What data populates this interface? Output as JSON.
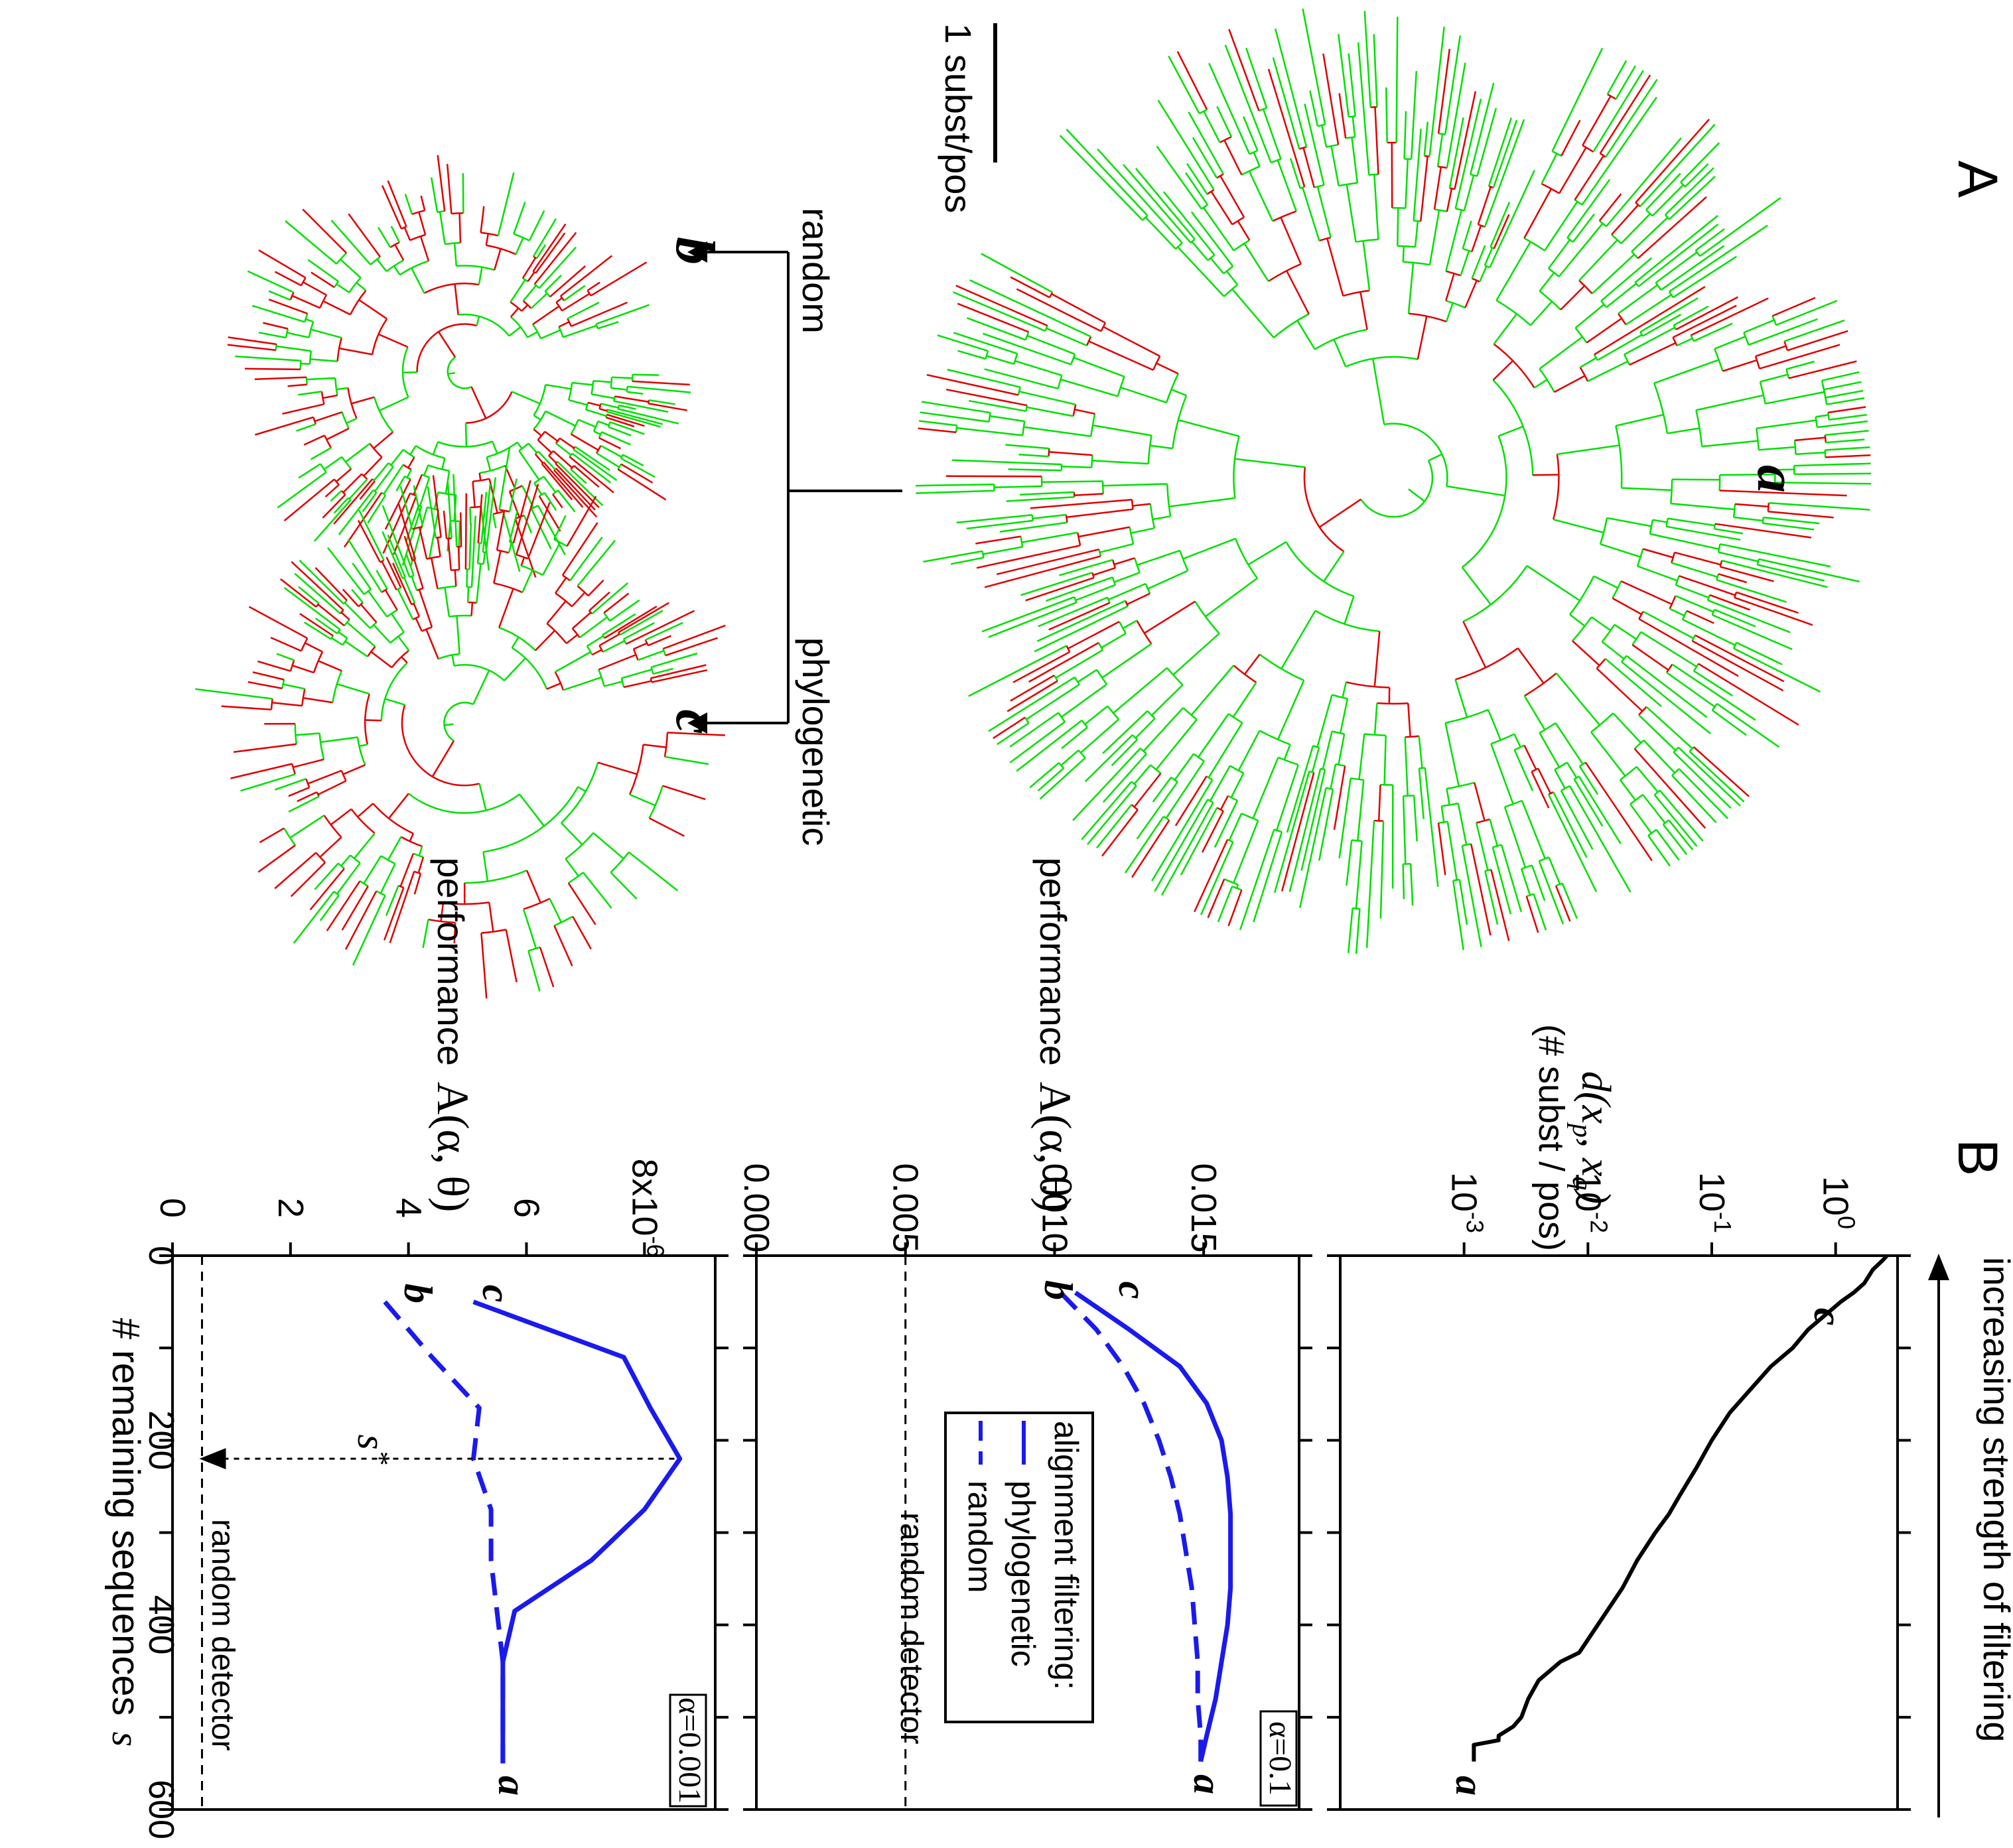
{
  "panel_labels": {
    "a": "A",
    "b": "B"
  },
  "panel_a": {
    "scale_bar_label": "1 subst/pos",
    "arrow_random_label": "random",
    "arrow_phylo_label": "phylogenetic",
    "tree_labels": {
      "a": "a",
      "b": "b",
      "c": "c"
    },
    "colors": {
      "green": "#00e000",
      "red": "#e00000"
    }
  },
  "panel_b": {
    "top_arrow_label": "increasing strength of filtering",
    "x_axis_label": "# remaining sequences",
    "x_axis_var": "s",
    "x_ticks": [
      "0",
      "200",
      "400",
      "600"
    ]
  },
  "chart_data": [
    {
      "type": "line",
      "ylabel": "d(xp, xq)",
      "ylabel_main": "d(x",
      "ylabel_sub_p": "p",
      "ylabel_mid": ", x",
      "ylabel_sub_q": "q",
      "ylabel_end": ")",
      "ylabel_units": "(# subst / pos)",
      "y_scale": "log",
      "y_ticks": [
        "10",
        "10",
        "10",
        "10"
      ],
      "y_tick_exps": [
        "-3",
        "-2",
        "-1",
        "0"
      ],
      "xlim": [
        0,
        600
      ],
      "ylim_log10": [
        -4,
        0.5
      ],
      "point_labels": [
        "c",
        "a"
      ],
      "series": [
        {
          "color": "#000000",
          "x": [
            0,
            5,
            15,
            30,
            40,
            50,
            60,
            80,
            100,
            120,
            150,
            170,
            200,
            230,
            260,
            280,
            300,
            330,
            360,
            400,
            430,
            440,
            460,
            480,
            500,
            510,
            520,
            525,
            530,
            540,
            548
          ],
          "y": [
            2.6,
            2.4,
            2.0,
            1.7,
            1.4,
            1.1,
            0.9,
            0.6,
            0.45,
            0.3,
            0.19,
            0.14,
            0.1,
            0.075,
            0.055,
            0.045,
            0.035,
            0.025,
            0.019,
            0.012,
            0.0085,
            0.006,
            0.004,
            0.0033,
            0.0029,
            0.0025,
            0.0019,
            0.0019,
            0.0012,
            0.0012,
            0.0012
          ]
        }
      ]
    },
    {
      "type": "line",
      "ylabel": "performance A(α, θ)",
      "ylabel_word": "performance",
      "ylabel_fn": "A(α, θ)",
      "y_ticks": [
        "0.000",
        "0.005",
        "0.010",
        "0.015"
      ],
      "y_tick_values": [
        0,
        0.005,
        0.01,
        0.015
      ],
      "xlim": [
        0,
        600
      ],
      "ylim": [
        0,
        0.0182
      ],
      "alpha_label": "α=0.1",
      "random_detector_label": "random detector",
      "random_detector_value": 0.005,
      "point_labels": {
        "c": "c",
        "b": "b",
        "a": "a"
      },
      "legend": {
        "title": "alignment filtering:",
        "items": [
          "phylogenetic",
          "random"
        ]
      },
      "series": [
        {
          "name": "phylogenetic",
          "style": "solid",
          "color": "#1a1aee",
          "x": [
            40,
            80,
            120,
            160,
            200,
            240,
            280,
            320,
            360,
            400,
            440,
            480,
            520,
            548
          ],
          "y": [
            0.0107,
            0.0125,
            0.0142,
            0.0151,
            0.0156,
            0.0158,
            0.0159,
            0.0159,
            0.0159,
            0.0158,
            0.0156,
            0.0154,
            0.0151,
            0.0149
          ]
        },
        {
          "name": "random",
          "style": "dashed",
          "color": "#1a1aee",
          "x": [
            40,
            80,
            120,
            160,
            200,
            240,
            280,
            320,
            360,
            400,
            440,
            480,
            520,
            548
          ],
          "y": [
            0.0102,
            0.0114,
            0.0123,
            0.013,
            0.0135,
            0.0139,
            0.0142,
            0.0144,
            0.0146,
            0.0147,
            0.0148,
            0.0148,
            0.0149,
            0.0149
          ]
        }
      ]
    },
    {
      "type": "line",
      "ylabel": "performance A(α, θ)",
      "ylabel_word": "performance",
      "ylabel_fn": "A(α, θ)",
      "y_ticks": [
        "0",
        "2",
        "4",
        "6",
        "8x10"
      ],
      "y_tick_exp": "-6",
      "y_tick_values": [
        0,
        2,
        4,
        6,
        8
      ],
      "y_multiplier": "1e-6",
      "xlim": [
        0,
        600
      ],
      "ylim": [
        0,
        9.2
      ],
      "alpha_label": "α=0.001",
      "random_detector_label": "random detector",
      "random_detector_value": 0.5,
      "s_star_label": "s",
      "s_star_sup": "*",
      "s_star_value": 220,
      "point_labels": {
        "c": "c",
        "b": "b",
        "a": "a"
      },
      "series": [
        {
          "name": "phylogenetic",
          "style": "solid",
          "color": "#1a1aee",
          "x": [
            50,
            110,
            165,
            220,
            275,
            330,
            385,
            440,
            500,
            550
          ],
          "y": [
            5.1,
            7.65,
            8.1,
            8.6,
            8.0,
            7.1,
            5.8,
            5.6,
            5.6,
            5.6
          ]
        },
        {
          "name": "random",
          "style": "dashed",
          "color": "#1a1aee",
          "x": [
            50,
            110,
            165,
            220,
            275,
            330,
            385,
            440,
            500,
            550
          ],
          "y": [
            3.6,
            4.4,
            5.2,
            5.1,
            5.4,
            5.4,
            5.5,
            5.6,
            5.6,
            5.6
          ]
        }
      ]
    }
  ]
}
